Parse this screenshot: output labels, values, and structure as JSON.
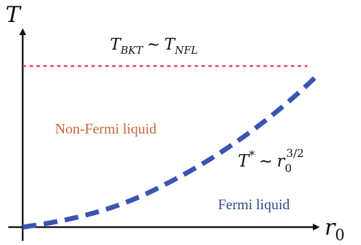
{
  "diagram": {
    "axes": {
      "y_label": "T",
      "x_label": "r",
      "x_label_subscript": "0"
    },
    "upper_line": {
      "label_main_1": "T",
      "label_sub_1": "BKT",
      "label_relation": "∼",
      "label_main_2": "T",
      "label_sub_2": "NFL",
      "color": "#e0405a"
    },
    "crossover_curve": {
      "label_main": "T",
      "label_sup": "*",
      "label_relation": "∼",
      "label_var": "r",
      "label_var_sub": "0",
      "label_exponent": "3/2",
      "color": "#3a55b0"
    },
    "regions": {
      "non_fermi": {
        "text": "Non-Fermi liquid",
        "color": "#c8643a"
      },
      "fermi": {
        "text": "Fermi liquid",
        "color": "#2f4a8a"
      }
    }
  }
}
